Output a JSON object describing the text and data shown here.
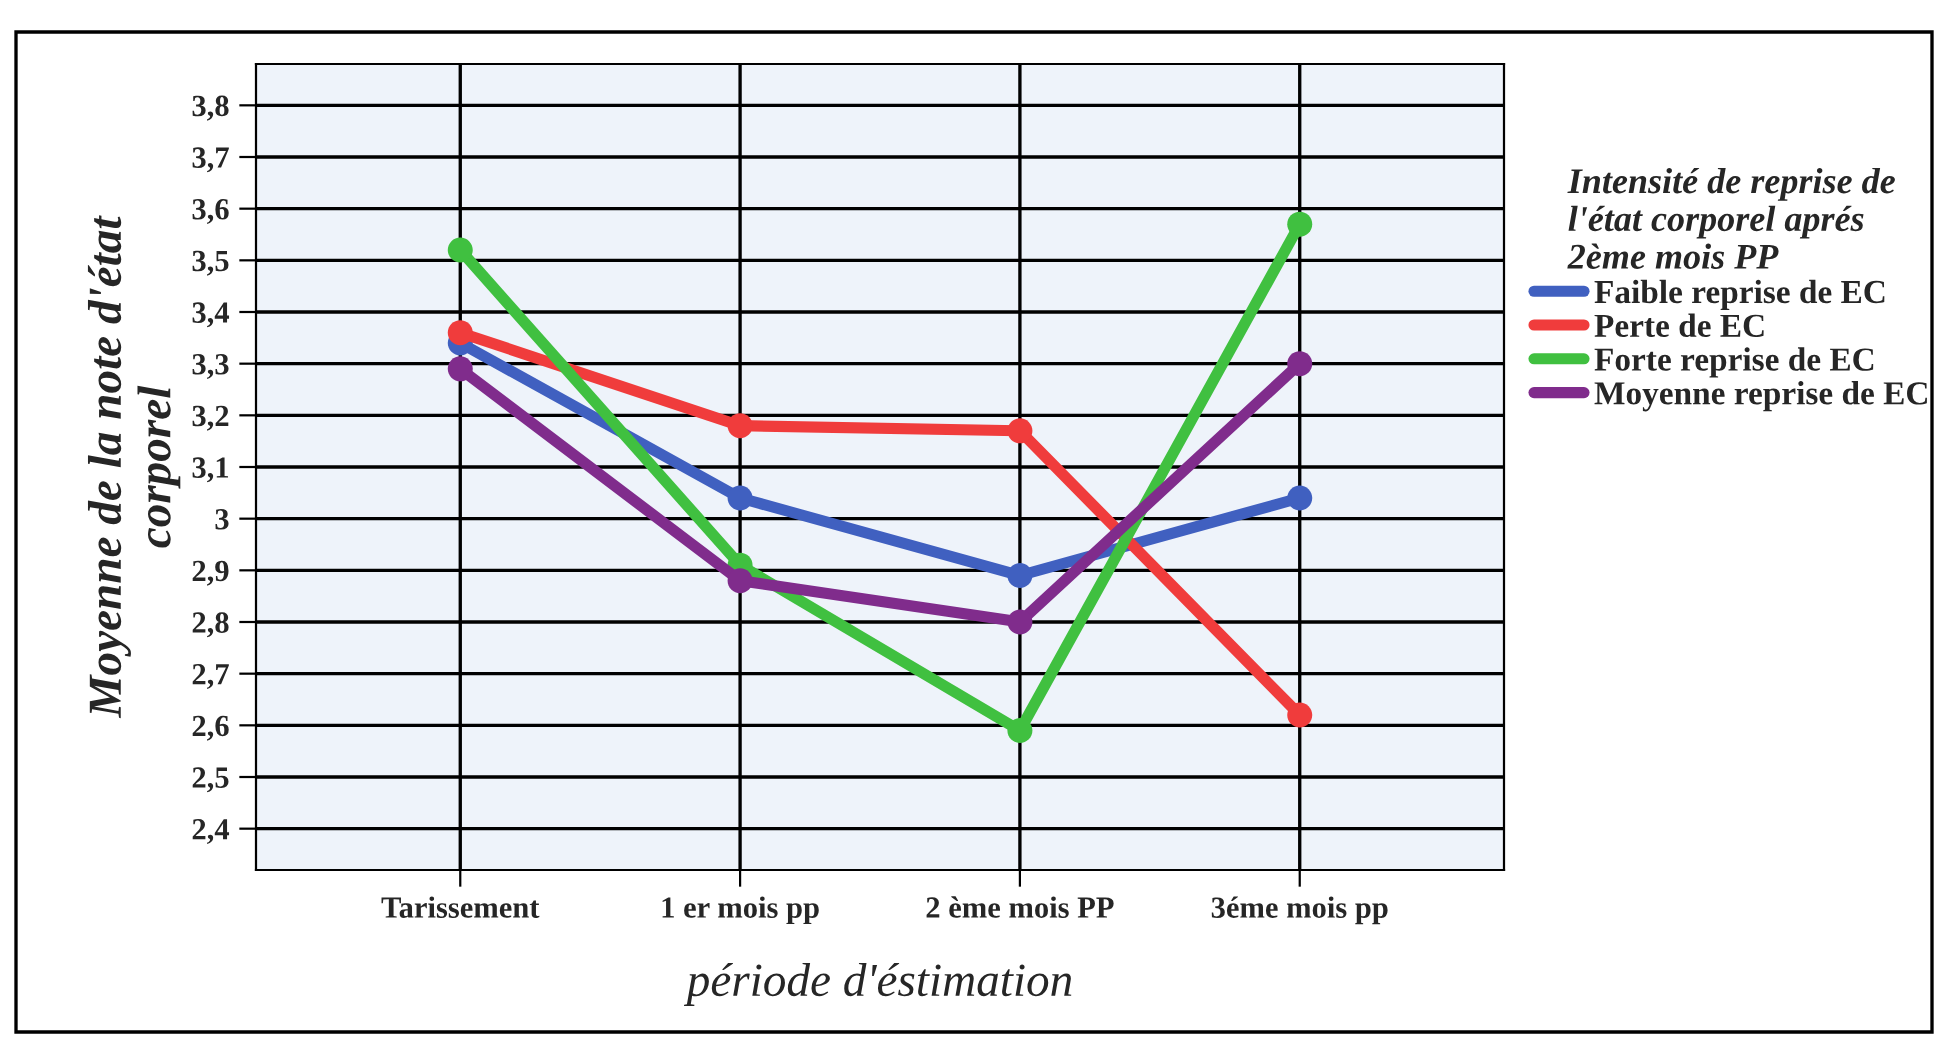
{
  "chart_data": {
    "type": "line",
    "xlabel": "période d'éstimation",
    "ylabel": "Moyenne de la note d'état\ncorporel",
    "legend_title": "Intensité de reprise de\nl'état corporel aprés\n2ème mois PP",
    "categories": [
      "Tarissement",
      "1 er mois pp",
      "2 ème mois PP",
      "3éme mois pp"
    ],
    "series": [
      {
        "name": "Faible reprise de EC",
        "color": "#4060c0",
        "values": [
          3.34,
          3.04,
          2.89,
          3.04
        ]
      },
      {
        "name": "Perte de EC",
        "color": "#f03c3c",
        "values": [
          3.36,
          3.18,
          3.17,
          2.62
        ]
      },
      {
        "name": "Forte reprise de EC",
        "color": "#40c040",
        "values": [
          3.52,
          2.91,
          2.59,
          3.57
        ]
      },
      {
        "name": "Moyenne reprise de EC",
        "color": "#802c8c",
        "values": [
          3.29,
          2.88,
          2.8,
          3.3
        ]
      }
    ],
    "ylim": [
      2.32,
      3.88
    ],
    "yticks": [
      {
        "value": 2.4,
        "label": "2,4"
      },
      {
        "value": 2.5,
        "label": "2,5"
      },
      {
        "value": 2.6,
        "label": "2,6"
      },
      {
        "value": 2.7,
        "label": "2,7"
      },
      {
        "value": 2.8,
        "label": "2,8"
      },
      {
        "value": 2.9,
        "label": "2,9"
      },
      {
        "value": 3,
        "label": "3"
      },
      {
        "value": 3.1,
        "label": "3,1"
      },
      {
        "value": 3.2,
        "label": "3,2"
      },
      {
        "value": 3.3,
        "label": "3,3"
      },
      {
        "value": 3.4,
        "label": "3,4"
      },
      {
        "value": 3.5,
        "label": "3,5"
      },
      {
        "value": 3.6,
        "label": "3,6"
      },
      {
        "value": 3.7,
        "label": "3,7"
      },
      {
        "value": 3.8,
        "label": "3,8"
      }
    ],
    "grid": true,
    "legend": "right",
    "marker": "circle",
    "line_style": "solid"
  }
}
